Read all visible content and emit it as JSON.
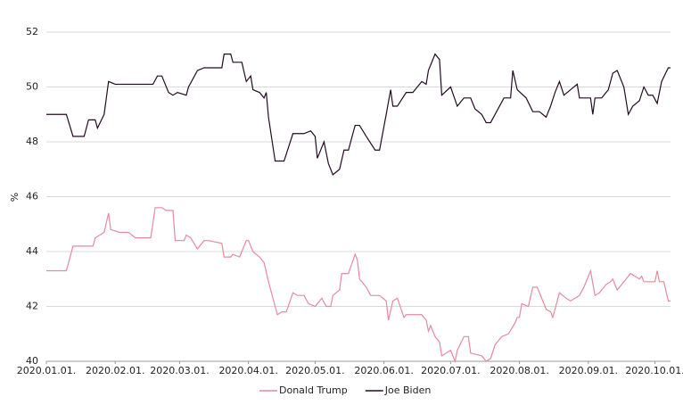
{
  "chart_data": {
    "type": "line",
    "ylabel": "%",
    "xlim": [
      "2020-01-01",
      "2020-10-08"
    ],
    "xticks": [
      {
        "value": "2020-01-01",
        "label": "2020.01.01."
      },
      {
        "value": "2020-02-01",
        "label": "2020.02.01."
      },
      {
        "value": "2020-03-01",
        "label": "2020.03.01."
      },
      {
        "value": "2020-04-01",
        "label": "2020.04.01."
      },
      {
        "value": "2020-05-01",
        "label": "2020.05.01."
      },
      {
        "value": "2020-06-01",
        "label": "2020.06.01."
      },
      {
        "value": "2020-07-01",
        "label": "2020.07.01."
      },
      {
        "value": "2020-08-01",
        "label": "2020.08.01."
      },
      {
        "value": "2020-09-01",
        "label": "2020.09.01."
      },
      {
        "value": "2020-10-01",
        "label": "2020.10.01."
      }
    ],
    "ylim": [
      40,
      52
    ],
    "yticks": [
      40,
      42,
      44,
      46,
      48,
      50,
      52
    ],
    "grid": true,
    "legend": "bottom",
    "series": [
      {
        "name": "Donald Trump",
        "color": "#e48a9c",
        "x": [
          "2020-01-01",
          "2020-01-10",
          "2020-01-13",
          "2020-01-22",
          "2020-01-23",
          "2020-01-27",
          "2020-01-29",
          "2020-01-30",
          "2020-02-03",
          "2020-02-07",
          "2020-02-10",
          "2020-02-17",
          "2020-02-19",
          "2020-02-22",
          "2020-02-24",
          "2020-02-27",
          "2020-02-28",
          "2020-03-03",
          "2020-03-04",
          "2020-03-06",
          "2020-03-09",
          "2020-03-12",
          "2020-03-14",
          "2020-03-20",
          "2020-03-21",
          "2020-03-24",
          "2020-03-25",
          "2020-03-28",
          "2020-03-31",
          "2020-04-01",
          "2020-04-03",
          "2020-04-06",
          "2020-04-08",
          "2020-04-10",
          "2020-04-12",
          "2020-04-14",
          "2020-04-16",
          "2020-04-18",
          "2020-04-21",
          "2020-04-23",
          "2020-04-26",
          "2020-04-28",
          "2020-05-01",
          "2020-05-04",
          "2020-05-06",
          "2020-05-08",
          "2020-05-09",
          "2020-05-12",
          "2020-05-13",
          "2020-05-16",
          "2020-05-19",
          "2020-05-20",
          "2020-05-21",
          "2020-05-24",
          "2020-05-26",
          "2020-05-30",
          "2020-06-02",
          "2020-06-03",
          "2020-06-05",
          "2020-06-07",
          "2020-06-10",
          "2020-06-11",
          "2020-06-18",
          "2020-06-20",
          "2020-06-21",
          "2020-06-22",
          "2020-06-24",
          "2020-06-26",
          "2020-06-27",
          "2020-07-01",
          "2020-07-03",
          "2020-07-04",
          "2020-07-07",
          "2020-07-09",
          "2020-07-10",
          "2020-07-15",
          "2020-07-17",
          "2020-07-19",
          "2020-07-21",
          "2020-07-24",
          "2020-07-27",
          "2020-07-30",
          "2020-07-31",
          "2020-08-01",
          "2020-08-02",
          "2020-08-05",
          "2020-08-07",
          "2020-08-09",
          "2020-08-11",
          "2020-08-13",
          "2020-08-15",
          "2020-08-16",
          "2020-08-19",
          "2020-08-22",
          "2020-08-24",
          "2020-08-28",
          "2020-08-30",
          "2020-09-02",
          "2020-09-04",
          "2020-09-06",
          "2020-09-09",
          "2020-09-11",
          "2020-09-12",
          "2020-09-14",
          "2020-09-17",
          "2020-09-20",
          "2020-09-24",
          "2020-09-25",
          "2020-09-26",
          "2020-10-01",
          "2020-10-02",
          "2020-10-03",
          "2020-10-05",
          "2020-10-07",
          "2020-10-08"
        ],
        "values": [
          43.3,
          43.3,
          44.2,
          44.2,
          44.5,
          44.7,
          45.4,
          44.8,
          44.7,
          44.7,
          44.5,
          44.5,
          45.6,
          45.6,
          45.5,
          45.5,
          44.4,
          44.4,
          44.6,
          44.5,
          44.1,
          44.4,
          44.4,
          44.3,
          43.8,
          43.8,
          43.9,
          43.8,
          44.4,
          44.4,
          44.0,
          43.8,
          43.6,
          42.9,
          42.3,
          41.7,
          41.8,
          41.8,
          42.5,
          42.4,
          42.4,
          42.1,
          42.0,
          42.3,
          42.0,
          42.0,
          42.4,
          42.6,
          43.2,
          43.2,
          43.9,
          43.7,
          43.0,
          42.7,
          42.4,
          42.4,
          42.2,
          41.5,
          42.2,
          42.3,
          41.6,
          41.7,
          41.7,
          41.5,
          41.1,
          41.3,
          40.9,
          40.7,
          40.2,
          40.4,
          40.0,
          40.4,
          40.9,
          40.9,
          40.3,
          40.2,
          40.0,
          40.1,
          40.6,
          40.9,
          41.0,
          41.4,
          41.6,
          41.6,
          42.1,
          42.0,
          42.7,
          42.7,
          42.3,
          41.9,
          41.8,
          41.6,
          42.5,
          42.3,
          42.2,
          42.4,
          42.7,
          43.3,
          42.4,
          42.5,
          42.8,
          42.9,
          43.0,
          42.6,
          42.9,
          43.2,
          43.0,
          43.1,
          42.9,
          42.9,
          43.3,
          42.9,
          42.9,
          42.2,
          42.2
        ]
      },
      {
        "name": "Joe Biden",
        "color": "#240a22",
        "x": [
          "2020-01-01",
          "2020-01-10",
          "2020-01-13",
          "2020-01-18",
          "2020-01-20",
          "2020-01-23",
          "2020-01-24",
          "2020-01-27",
          "2020-01-29",
          "2020-02-01",
          "2020-02-18",
          "2020-02-20",
          "2020-02-22",
          "2020-02-25",
          "2020-02-27",
          "2020-02-29",
          "2020-03-04",
          "2020-03-05",
          "2020-03-09",
          "2020-03-12",
          "2020-03-20",
          "2020-03-21",
          "2020-03-24",
          "2020-03-25",
          "2020-03-29",
          "2020-03-31",
          "2020-04-02",
          "2020-04-03",
          "2020-04-06",
          "2020-04-08",
          "2020-04-09",
          "2020-04-10",
          "2020-04-13",
          "2020-04-17",
          "2020-04-21",
          "2020-04-26",
          "2020-04-29",
          "2020-05-01",
          "2020-05-02",
          "2020-05-05",
          "2020-05-07",
          "2020-05-09",
          "2020-05-12",
          "2020-05-14",
          "2020-05-16",
          "2020-05-19",
          "2020-05-21",
          "2020-05-24",
          "2020-05-28",
          "2020-05-30",
          "2020-06-02",
          "2020-06-04",
          "2020-06-05",
          "2020-06-07",
          "2020-06-11",
          "2020-06-14",
          "2020-06-18",
          "2020-06-20",
          "2020-06-21",
          "2020-06-24",
          "2020-06-26",
          "2020-06-27",
          "2020-07-01",
          "2020-07-04",
          "2020-07-07",
          "2020-07-10",
          "2020-07-12",
          "2020-07-15",
          "2020-07-17",
          "2020-07-19",
          "2020-07-23",
          "2020-07-25",
          "2020-07-28",
          "2020-07-29",
          "2020-07-31",
          "2020-08-04",
          "2020-08-07",
          "2020-08-10",
          "2020-08-13",
          "2020-08-15",
          "2020-08-17",
          "2020-08-19",
          "2020-08-21",
          "2020-08-24",
          "2020-08-27",
          "2020-08-28",
          "2020-09-02",
          "2020-09-03",
          "2020-09-04",
          "2020-09-07",
          "2020-09-10",
          "2020-09-12",
          "2020-09-14",
          "2020-09-17",
          "2020-09-19",
          "2020-09-21",
          "2020-09-24",
          "2020-09-26",
          "2020-09-28",
          "2020-09-30",
          "2020-10-02",
          "2020-10-04",
          "2020-10-07",
          "2020-10-08"
        ],
        "values": [
          49.0,
          49.0,
          48.2,
          48.2,
          48.8,
          48.8,
          48.5,
          49.0,
          50.2,
          50.1,
          50.1,
          50.4,
          50.4,
          49.8,
          49.7,
          49.8,
          49.7,
          50.0,
          50.6,
          50.7,
          50.7,
          51.2,
          51.2,
          50.9,
          50.9,
          50.2,
          50.4,
          49.9,
          49.8,
          49.6,
          49.8,
          48.9,
          47.3,
          47.3,
          48.3,
          48.3,
          48.4,
          48.2,
          47.4,
          48.0,
          47.2,
          46.8,
          47.0,
          47.7,
          47.7,
          48.6,
          48.6,
          48.2,
          47.7,
          47.7,
          49.0,
          49.9,
          49.3,
          49.3,
          49.8,
          49.8,
          50.2,
          50.1,
          50.6,
          51.2,
          51.0,
          49.7,
          50.0,
          49.3,
          49.6,
          49.6,
          49.2,
          49.0,
          48.7,
          48.7,
          49.3,
          49.6,
          49.6,
          50.6,
          49.9,
          49.6,
          49.1,
          49.1,
          48.9,
          49.3,
          49.8,
          50.2,
          49.7,
          49.9,
          50.1,
          49.6,
          49.6,
          49.0,
          49.6,
          49.6,
          49.9,
          50.5,
          50.6,
          50.0,
          49.0,
          49.3,
          49.5,
          50.0,
          49.7,
          49.7,
          49.4,
          50.2,
          50.7,
          50.7
        ]
      }
    ]
  }
}
